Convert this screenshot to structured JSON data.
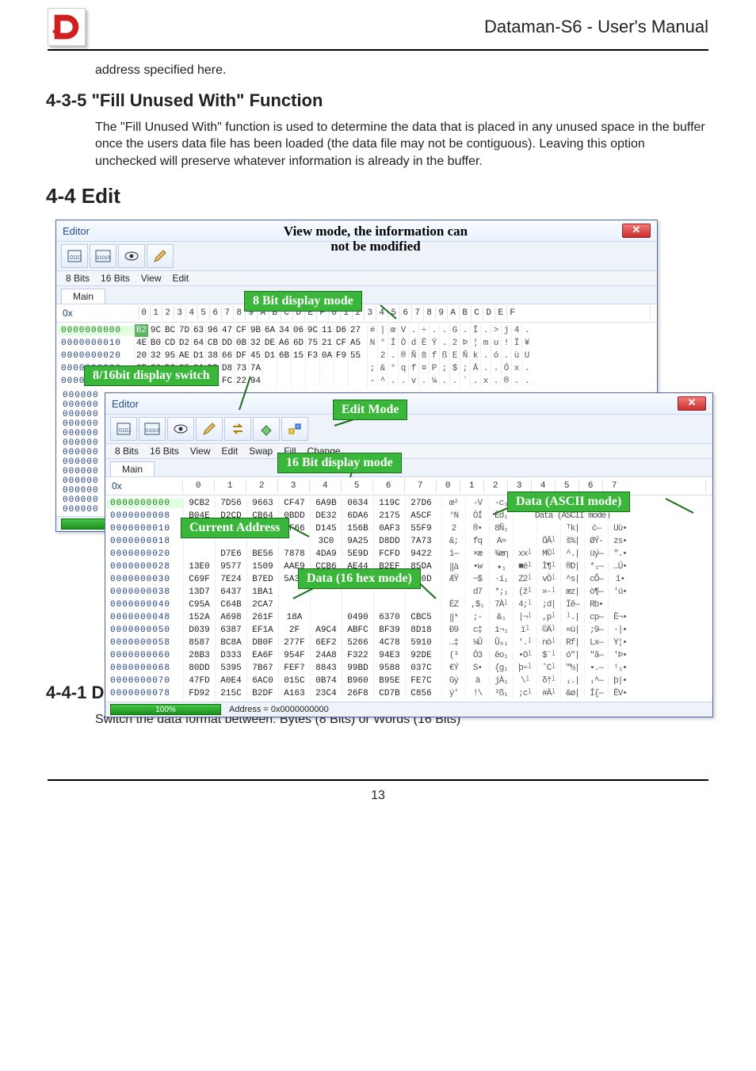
{
  "header": {
    "manual_title": "Dataman-S6 - User's Manual",
    "logo_color": "#cf1f1f"
  },
  "para_addr": "address specified here.",
  "section_435": {
    "heading": "4-3-5 \"Fill Unused With\" Function",
    "body": "The \"Fill Unused With\" function is used to determine the data that is placed in any unused space in the buffer once the users data file has been loaded (the data file may not be contiguous). Leaving this option unchecked will preserve whatever information is already in the buffer."
  },
  "section_44": {
    "heading": "4-4 Edit"
  },
  "callouts": {
    "view_note_l1": "View mode, the information can",
    "view_note_l2": "not be modified",
    "eightbit_display": "8 Bit display mode",
    "bit_switch": "8/16bit display switch",
    "edit_mode": "Edit Mode",
    "sixteen_display": "16 Bit display mode",
    "current_address": "Current Address",
    "data_hex": "Data (16 hex mode)",
    "data_ascii": "Data (ASCII mode)"
  },
  "editor8": {
    "title": "Editor",
    "toolbar_btns": [
      "8bits-icon",
      "16bits-icon",
      "eye-icon",
      "pencil-icon"
    ],
    "menu": [
      "8 Bits",
      "16 Bits",
      "View",
      "Edit"
    ],
    "tab": "Main",
    "addr_prefix": "0x",
    "col_headers": [
      "0",
      "1",
      "2",
      "3",
      "4",
      "5",
      "6",
      "7",
      "8",
      "9",
      "A",
      "B",
      "C",
      "D",
      "E",
      "F",
      "0",
      "1",
      "2",
      "3",
      "4",
      "5",
      "6",
      "7",
      "8",
      "9",
      "A",
      "B",
      "C",
      "D",
      "E",
      "F"
    ],
    "rows": [
      {
        "addr": "0000000000",
        "green": true,
        "bytes": [
          "B2",
          "9C",
          "BC",
          "7D",
          "63",
          "96",
          "47",
          "CF",
          "9B",
          "6A",
          "34",
          "06",
          "9C",
          "11",
          "D6",
          "27"
        ],
        "first_sel": true,
        "ascii": "#|œV.÷..G.Ï.>j4..œ.Ö' "
      },
      {
        "addr": "0000000010",
        "bytes": [
          "4E",
          "B0",
          "CD",
          "D2",
          "64",
          "CB",
          "DD",
          "0B",
          "32",
          "DE",
          "A6",
          "6D",
          "75",
          "21",
          "CF",
          "A5"
        ],
        "ascii": "N°ÍÒdËÝ.2Þ¦mu!Ï¥E.Ý.ô2.Þu!.Ï¥"
      },
      {
        "addr": "0000000020",
        "bytes": [
          "20",
          "32",
          "95",
          "AE",
          "D1",
          "38",
          "66",
          "DF",
          "45",
          "D1",
          "6B",
          "15",
          "F3",
          "0A",
          "F9",
          "55"
        ],
        "ascii": " 2.®Ñ8fßEÑk.ó.ùU .Ñ8.ßEÑ.k.ó..ùU"
      },
      {
        "addr": "0000000030",
        "bytes": [
          "8F",
          "C0",
          "D3",
          "25",
          "9A",
          "DD",
          "D8",
          "73",
          "7A",
          "",
          "",
          "",
          "",
          "",
          "",
          ""
        ],
        "ascii": ";&°qf¤P;$;Á..Óx..s z"
      },
      {
        "addr": "0000000040",
        "bytes": [
          "72",
          "A9",
          "4D",
          "9D",
          "5F",
          "FD",
          "FC",
          "22",
          "94",
          "",
          "",
          "",
          "",
          "",
          "",
          ""
        ],
        "ascii": "-^..v.¼..´.x.®..\"."
      }
    ],
    "more_addrs": [
      "000000",
      "000000",
      "000000",
      "000000",
      "000000",
      "000000",
      "000000",
      "000000",
      "000000",
      "000000",
      "000000",
      "000000",
      "000000"
    ],
    "progress": "100%"
  },
  "editor16": {
    "title": "Editor",
    "toolbar_btns": [
      "8bits-icon",
      "16bits-icon",
      "eye-icon",
      "pencil-icon",
      "swap-icon",
      "fill-icon",
      "change-icon"
    ],
    "menu": [
      "8 Bits",
      "16 Bits",
      "View",
      "Edit",
      "Swap",
      "Fill",
      "Change"
    ],
    "tab": "Main",
    "addr_prefix": "0x",
    "col_headers": [
      "0",
      "1",
      "2",
      "3",
      "4",
      "5",
      "6",
      "7",
      "0",
      "1",
      "2",
      "3",
      "4",
      "5",
      "6",
      "7"
    ],
    "rows": [
      {
        "addr": "0000000000",
        "green": true,
        "words": [
          "9CB2",
          "7D56",
          "9663",
          "CF47",
          "6A9B",
          "0634",
          "119C",
          "27D6"
        ],
        "first_sel": true,
        "ascii": [
          "œ²",
          "-V",
          "-c₁",
          "ÏGˡ",
          "j›.",
          "-4|",
          "«—",
          "·Ö•"
        ]
      },
      {
        "addr": "0000000008",
        "words": [
          "B04E",
          "D2CD",
          "CB64",
          "0BDD",
          "DE32",
          "6DA6",
          "2175",
          "A5CF"
        ],
        "ascii": [
          "°N",
          "ÒÍ",
          "Ëd₁",
          "",
          "",
          "Data (ASCII mode)",
          "",
          ""
        ],
        "ascii_callout": true
      },
      {
        "addr": "0000000010",
        "words": [
          "3220",
          "AE95",
          "38D1",
          "DF66",
          "D145",
          "156B",
          "0AF3",
          "55F9"
        ],
        "ascii": [
          "2 ",
          "®•",
          "8Ñ₁",
          "",
          "",
          "ᵀk|",
          "ċ—",
          "Uù•"
        ]
      },
      {
        "addr": "0000000018",
        "words": [
          "",
          "",
          "",
          "",
          "3C0",
          "9A25",
          "D8DD",
          "7A73"
        ],
        "current_addr": true,
        "ascii": [
          "&;",
          "fq",
          "A≈",
          "",
          "ÖÄˡ",
          "š%|",
          "ØÝ-",
          "zs•"
        ]
      },
      {
        "addr": "0000000020",
        "words": [
          "",
          "D7E6",
          "BE56",
          "7878",
          "4DA9",
          "5E9D",
          "FCFD",
          "9422"
        ],
        "ascii": [
          "î—",
          "×æ",
          "¾æη",
          "xxˡ",
          "M©ˡ",
          "^.|",
          "üý—",
          "\".•"
        ]
      },
      {
        "addr": "0000000028",
        "words": [
          "13E0",
          "9577",
          "1509",
          "AAE9",
          "CCB6",
          "AE44",
          "B2EF",
          "85DA"
        ],
        "ascii": [
          "‖à",
          "•w",
          "✦₁",
          "■éˡ",
          "Ì¶ˡ",
          "®D|",
          "*₁—",
          "…Ú•"
        ]
      },
      {
        "addr": "0000000030",
        "words": [
          "C69F",
          "7E24",
          "B7ED",
          "5A32",
          "76D2",
          "8873",
          "638E",
          "0C0D"
        ],
        "ascii": [
          "ÆŸ",
          "~$",
          "·í₁",
          "Z2ˡ",
          "vÒˡ",
          "^s|",
          "cǑ—",
          "î•"
        ]
      },
      {
        "addr": "0000000038",
        "words": [
          "13D7",
          "6437",
          "1BA1",
          "",
          "",
          "",
          "",
          ""
        ],
        "ascii": [
          "",
          "d7",
          "*;₁",
          "(žˡ",
          "»·ˡ",
          "æz|",
          "ò¶—",
          "'ú•"
        ]
      },
      {
        "addr": "0000000040",
        "words": [
          "C95A",
          "C64B",
          "2CA7",
          "",
          "",
          "",
          "",
          ""
        ],
        "data_hex": true,
        "ascii": [
          "ÉZ",
          ",$₁",
          "7Àˡ",
          "4;ˡ",
          ";d|",
          "Ïê—",
          "Rb•",
          ""
        ]
      },
      {
        "addr": "0000000048",
        "words": [
          "152A",
          "A698",
          "261F",
          "18A",
          "",
          "0490",
          "6370",
          "CBC5"
        ],
        "ascii": [
          "‖*",
          ";-",
          "&₁",
          "|¬ˡ",
          ",pˡ",
          "ˡ.|",
          "cp—",
          "Ë¬•"
        ]
      },
      {
        "addr": "0000000050",
        "words": [
          "D039",
          "6387",
          "EF1A",
          "2F",
          "A9C4",
          "ABFC",
          "BF39",
          "8D18"
        ],
        "ascii": [
          "Ð9",
          "c‡",
          "ï¬₁",
          "ïˡ",
          "©Äˡ",
          "«ü|",
          ";9—",
          "·|•"
        ]
      },
      {
        "addr": "0000000058",
        "words": [
          "8587",
          "BC8A",
          "DB0F",
          "277F",
          "6EF2",
          "5266",
          "4C78",
          "5910"
        ],
        "ascii": [
          "…‡",
          "¼Ǔ",
          "Û₀₁",
          "'.ˡ",
          "nòˡ",
          "Rf|",
          "Lx—",
          "Y¦•"
        ]
      },
      {
        "addr": "0000000060",
        "words": [
          "28B3",
          "D333",
          "EA6F",
          "954F",
          "24A8",
          "F322",
          "94E3",
          "92DE"
        ],
        "ascii": [
          "(³",
          "Ó3",
          "êo₁",
          "•Oˡ",
          "$¨ˡ",
          "ó\"|",
          "″ã—",
          "'Þ•"
        ]
      },
      {
        "addr": "0000000068",
        "words": [
          "80DD",
          "5395",
          "7B67",
          "FEF7",
          "8843",
          "99BD",
          "9588",
          "037C"
        ],
        "ascii": [
          "€Ý",
          "S•",
          "{g₁",
          "þ÷ˡ",
          "ˆCˡ",
          "™½|",
          "•.—",
          "ᵗ₁•"
        ]
      },
      {
        "addr": "0000000070",
        "words": [
          "47FD",
          "A0E4",
          "6AC0",
          "015C",
          "0B74",
          "B960",
          "B95E",
          "FE7C"
        ],
        "ascii": [
          "Gý",
          "ä",
          "jÀ₁",
          "\\ˡ",
          "δ†ˡ",
          "₁.|",
          "₁^—",
          "þ|•"
        ]
      },
      {
        "addr": "0000000078",
        "words": [
          "FD92",
          "215C",
          "B2DF",
          "A163",
          "23C4",
          "26F8",
          "CD7B",
          "C856"
        ],
        "ascii": [
          "ý'",
          "!\\",
          "²ß₁",
          ";cˡ",
          "#Äˡ",
          "&ø|",
          "Í{—",
          "ÈV•"
        ]
      }
    ],
    "progress": "100%",
    "status_addr": "Address = 0x0000000000"
  },
  "section_441": {
    "heading": "4-4-1 Display Mode (8 Bits/16 Bits)",
    "body": "Switch the data format between: Bytes (8 Bits) or Words (16 Bits)"
  },
  "page_number": "13",
  "colors": {
    "green": "#3ab73a",
    "green_dark": "#1a6d1a",
    "blue_border": "#5068a6",
    "sel_green": "#5bb560"
  }
}
